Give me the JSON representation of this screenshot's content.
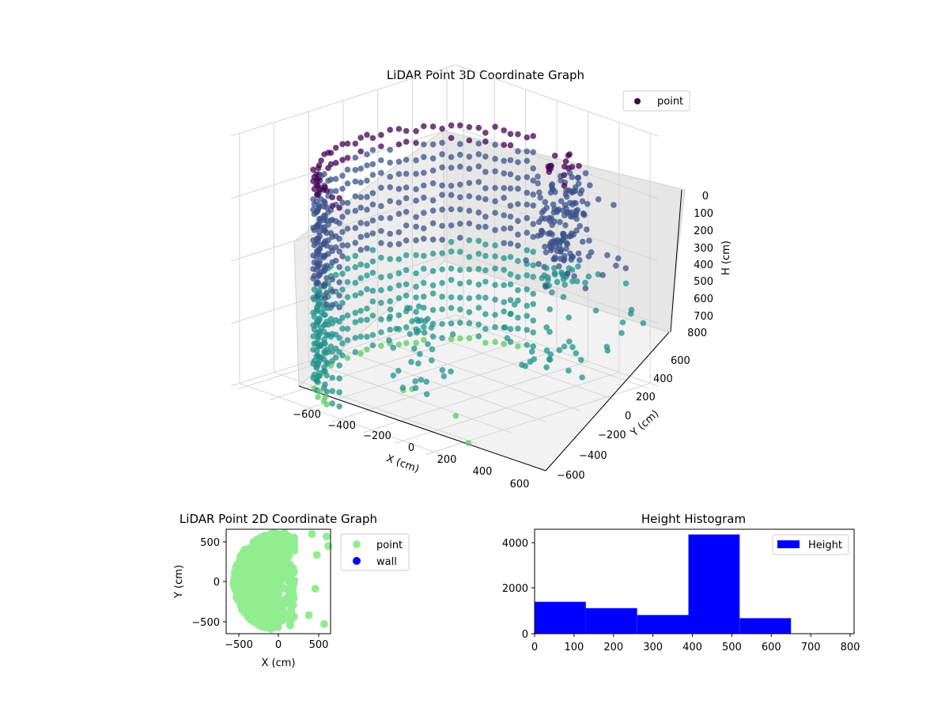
{
  "chart_data": [
    {
      "type": "scatter",
      "projection": "3d",
      "title": "LiDAR Point 3D Coordinate Graph",
      "xlabel": "X (cm)",
      "ylabel": "Y (cm)",
      "zlabel": "H (cm)",
      "xlim": [
        -650,
        650
      ],
      "ylim": [
        -650,
        650
      ],
      "zlim": [
        800,
        0
      ],
      "xticks": [
        "−600",
        "−400",
        "−200",
        "0",
        "200",
        "400",
        "600"
      ],
      "yticks": [
        "−600",
        "−400",
        "−200",
        "0",
        "200",
        "400",
        "600"
      ],
      "zticks": [
        "0",
        "100",
        "200",
        "300",
        "400",
        "500",
        "600",
        "700",
        "800"
      ],
      "legend": {
        "placement": "top-right",
        "entries": [
          "point"
        ]
      },
      "grid": true,
      "colormap": [
        "#440154",
        "#3b528b",
        "#21918c",
        "#5ec962"
      ],
      "description_of_distribution": "dense semicircular wall of points at radius ~550 cm spanning heights 0-800, plus a dense cluster near x~200,y~500 and scattered points toward +x",
      "series": [
        {
          "name": "point",
          "color": "#440154"
        }
      ]
    },
    {
      "type": "scatter",
      "title": "LiDAR Point 2D Coordinate Graph",
      "xlabel": "X (cm)",
      "ylabel": "Y (cm)",
      "xlim": [
        -650,
        650
      ],
      "ylim": [
        -650,
        650
      ],
      "xticks": [
        "−500",
        "0",
        "500"
      ],
      "yticks": [
        "500",
        "0",
        "−500"
      ],
      "legend": {
        "placement": "outside-right",
        "entries": [
          "point",
          "wall"
        ]
      },
      "series": [
        {
          "name": "point",
          "color": "#90ee90"
        },
        {
          "name": "wall",
          "color": "#0000ff"
        }
      ]
    },
    {
      "type": "bar",
      "subtype": "histogram",
      "title": "Height Histogram",
      "xlabel": "",
      "ylabel": "",
      "bin_edges": [
        0,
        130,
        260,
        390,
        520,
        650,
        780
      ],
      "values": [
        1400,
        1120,
        820,
        4350,
        680,
        0
      ],
      "xlim": [
        0,
        810
      ],
      "ylim": [
        0,
        4580
      ],
      "xticks": [
        "0",
        "100",
        "200",
        "300",
        "400",
        "500",
        "600",
        "700",
        "800"
      ],
      "yticks": [
        "0",
        "2000",
        "4000"
      ],
      "legend": {
        "placement": "top-right",
        "entries": [
          "Height"
        ]
      },
      "series": [
        {
          "name": "Height",
          "color": "#0000ff"
        }
      ]
    }
  ]
}
